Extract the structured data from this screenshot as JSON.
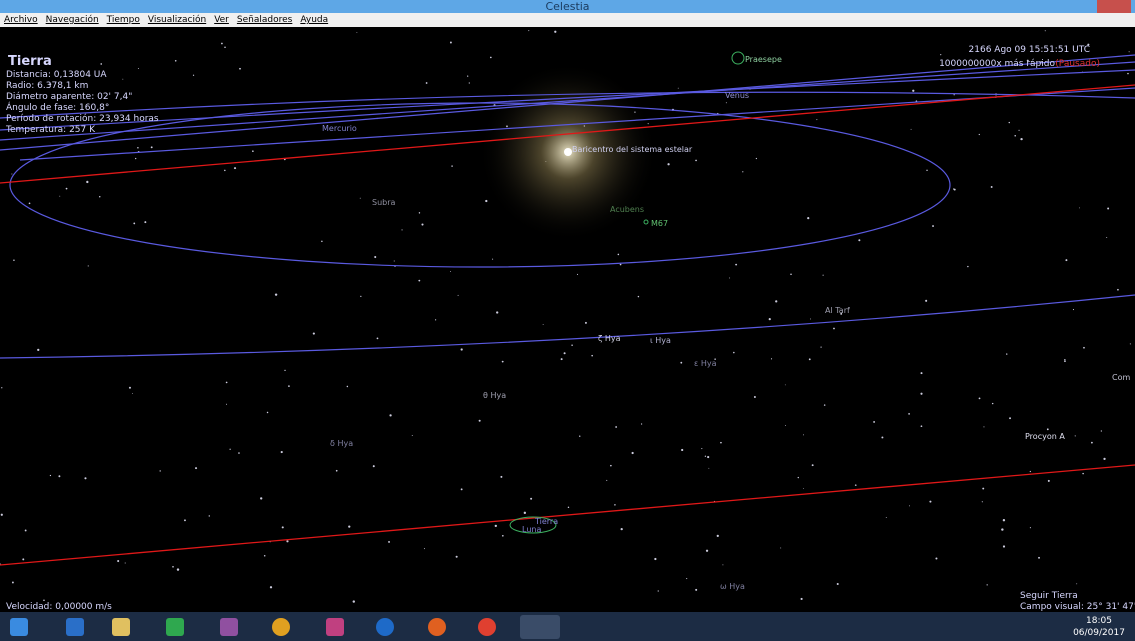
{
  "window": {
    "title": "Celestia"
  },
  "menu": [
    "Archivo",
    "Navegación",
    "Tiempo",
    "Visualización",
    "Ver",
    "Señaladores",
    "Ayuda"
  ],
  "info": {
    "name": "Tierra",
    "lines": [
      "Distancia: 0,13804 UA",
      "Radio: 6.378,1 km",
      "Diámetro aparente: 02' 7,4\"",
      "Ángulo de fase: 160,8°",
      "Período de rotación: 23,934 horas",
      "Temperatura: 257 K"
    ]
  },
  "time": {
    "date": "2166 Ago 09 15:51:51 UTC",
    "speed": "1000000000x más rápido",
    "paused": "(Pausado)"
  },
  "status": {
    "velocity": "Velocidad: 0,00000 m/s",
    "follow": "Seguir Tierra",
    "fov": "Campo visual: 25° 31' 47\""
  },
  "labels": [
    "Praesepe",
    "Venus",
    "Mercurio",
    "Baricentro del sistema estelar",
    "Subra",
    "Acubens",
    "M67",
    "Al Tarf",
    "ζ Hya",
    "ι Hya",
    "ε Hya",
    "θ Hya",
    "δ Hya",
    "Procyon A",
    "Com",
    "Tierra",
    "Luna",
    "ω Hya"
  ],
  "taskbar": {
    "clock": "18:05",
    "date": "06/09/2017"
  }
}
